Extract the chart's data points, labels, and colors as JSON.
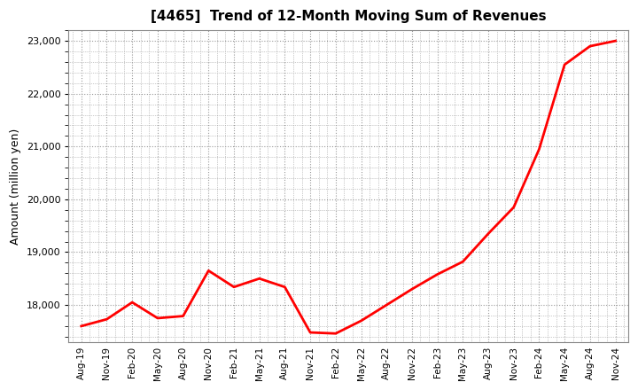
{
  "title": "[4465]  Trend of 12-Month Moving Sum of Revenues",
  "ylabel": "Amount (million yen)",
  "line_color": "#ff0000",
  "line_width": 2.0,
  "background_color": "#ffffff",
  "grid_color": "#999999",
  "ylim": [
    17300,
    23200
  ],
  "yticks": [
    18000,
    19000,
    20000,
    21000,
    22000,
    23000
  ],
  "labels": [
    "Aug-19",
    "Nov-19",
    "Feb-20",
    "May-20",
    "Aug-20",
    "Nov-20",
    "Feb-21",
    "May-21",
    "Aug-21",
    "Nov-21",
    "Feb-22",
    "May-22",
    "Aug-22",
    "Nov-22",
    "Feb-23",
    "May-23",
    "Aug-23",
    "Nov-23",
    "Feb-24",
    "May-24",
    "Aug-24",
    "Nov-24"
  ],
  "values": [
    17600,
    17730,
    18050,
    17750,
    17790,
    18650,
    18340,
    18500,
    18340,
    17480,
    17460,
    17700,
    18000,
    18300,
    18580,
    18820,
    19350,
    19850,
    20950,
    22550,
    22900,
    23000
  ]
}
